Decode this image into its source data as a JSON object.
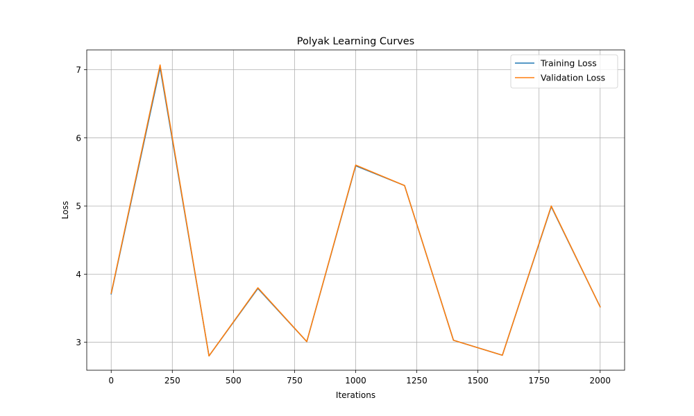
{
  "chart_data": {
    "type": "line",
    "title": "Polyak Learning Curves",
    "xlabel": "Iterations",
    "ylabel": "Loss",
    "xlim": [
      -100,
      2100
    ],
    "ylim": [
      2.59,
      7.29
    ],
    "xticks": [
      0,
      250,
      500,
      750,
      1000,
      1250,
      1500,
      1750,
      2000
    ],
    "yticks": [
      3,
      4,
      5,
      6,
      7
    ],
    "grid": true,
    "legend_position": "top-right",
    "x": [
      0,
      200,
      400,
      600,
      800,
      1000,
      1200,
      1400,
      1600,
      1800,
      2000
    ],
    "series": [
      {
        "name": "Training Loss",
        "color": "#1f77b4",
        "values": [
          3.71,
          7.03,
          2.8,
          3.79,
          3.01,
          5.59,
          5.3,
          3.03,
          2.81,
          4.99,
          3.52
        ]
      },
      {
        "name": "Validation Loss",
        "color": "#ff7f0e",
        "values": [
          3.72,
          7.07,
          2.8,
          3.8,
          3.01,
          5.6,
          5.3,
          3.03,
          2.81,
          5.0,
          3.52
        ]
      }
    ]
  }
}
